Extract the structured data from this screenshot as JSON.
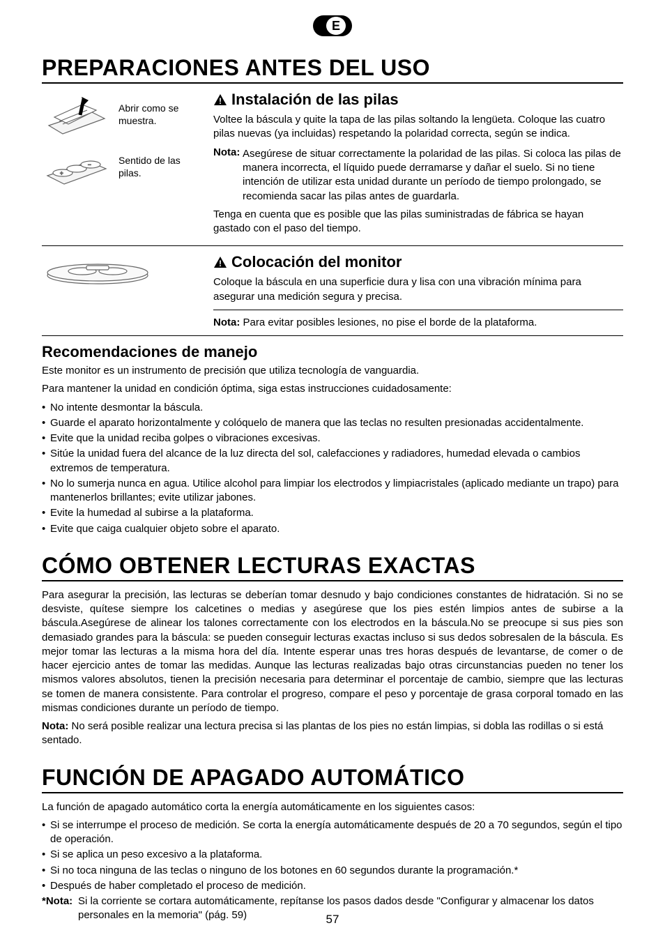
{
  "lang_letter": "E",
  "page_number": "57",
  "s1": {
    "title": "PREPARACIONES ANTES DEL USO",
    "fig1_caption": "Abrir como se muestra.",
    "fig2_caption": "Sentido de las pilas.",
    "sub1": {
      "title": "Instalación de las pilas",
      "p1": "Voltee la báscula y quite la tapa de las pilas soltando la lengüeta. Coloque las cuatro pilas nuevas (ya incluidas) respetando la polaridad correcta, según se indica.",
      "note_label": "Nota:",
      "note_body": "Asegúrese de situar correctamente la polaridad de las pilas. Si coloca las pilas de manera incorrecta, el líquido puede derramarse y dañar el suelo. Si no tiene intención de utilizar esta unidad durante un período de tiempo prolongado, se recomienda sacar las pilas antes de guardarla.",
      "p2": "Tenga en cuenta que es posible que las pilas suministradas de fábrica se hayan gastado con el paso del tiempo."
    },
    "sub2": {
      "title": "Colocación del monitor",
      "p1": "Coloque la báscula en una superficie dura y lisa con una vibración mínima para asegurar una medición segura y precisa.",
      "note_label": "Nota:",
      "note_body": "Para evitar posibles lesiones, no pise el borde de la plataforma."
    },
    "sub3": {
      "title": "Recomendaciones de manejo",
      "p1": "Este monitor es un instrumento de precisión que utiliza tecnología de vanguardia.",
      "p2": "Para mantener la unidad en condición óptima, siga estas instrucciones cuidadosamente:",
      "bullets": [
        "No intente desmontar la báscula.",
        "Guarde el aparato horizontalmente y colóquelo de manera que las teclas no resulten presionadas accidentalmente.",
        "Evite que la unidad reciba golpes o vibraciones excesivas.",
        "Sitúe la unidad fuera del alcance de la luz directa del sol, calefacciones y radiadores, humedad elevada o cambios extremos de temperatura.",
        "No lo sumerja nunca en agua. Utilice alcohol para limpiar los electrodos y limpiacristales (aplicado mediante un trapo) para mantenerlos brillantes; evite utilizar jabones.",
        "Evite la humedad al subirse a la plataforma.",
        "Evite que caiga cualquier objeto sobre el aparato."
      ]
    }
  },
  "s2": {
    "title": "CÓMO OBTENER LECTURAS EXACTAS",
    "p1": "Para asegurar la precisión, las lecturas se deberían tomar desnudo y bajo condiciones constantes de hidratación. Si no se desviste, quítese siempre los calcetines o medias y asegúrese que los pies estén limpios antes de subirse a la báscula.Asegúrese de alinear los talones correctamente con los electrodos en la báscula.No se preocupe si sus pies son demasiado grandes para la báscula: se pueden conseguir lecturas exactas incluso si sus dedos sobresalen de la báscula. Es mejor tomar las lecturas a la misma hora del día. Intente esperar unas tres horas después de levantarse, de comer o de hacer ejercicio antes de tomar las medidas. Aunque las lecturas realizadas bajo otras circunstancias pueden no tener los mismos valores absolutos, tienen la precisión necesaria para determinar el porcentaje de cambio, siempre que las lecturas se tomen de manera consistente. Para controlar el progreso, compare el peso y porcentaje de grasa corporal tomado en las mismas condiciones durante un período de tiempo.",
    "note_label": "Nota:",
    "note_body": "No será posible realizar una lectura precisa si las plantas de los pies no están limpias, si dobla las rodillas o si está sentado."
  },
  "s3": {
    "title": "FUNCIÓN DE APAGADO AUTOMÁTICO",
    "p1": "La función de apagado automático corta la energía automáticamente en los siguientes casos:",
    "bullets": [
      "Si se interrumpe el proceso de medición. Se corta la energía automáticamente después de 20 a 70 segundos, según el tipo de operación.",
      "Si se aplica un peso excesivo a la plataforma.",
      "Si no toca ninguna de las teclas o ninguno de los botones en 60 segundos durante la programación.*",
      "Después de haber completado el proceso de medición."
    ],
    "star_label": "*Nota:",
    "star_body": "Si la corriente se cortara automáticamente, repítanse los pasos dados desde \"Configurar y almacenar los datos personales en la memoria\" (pág. 59)"
  }
}
